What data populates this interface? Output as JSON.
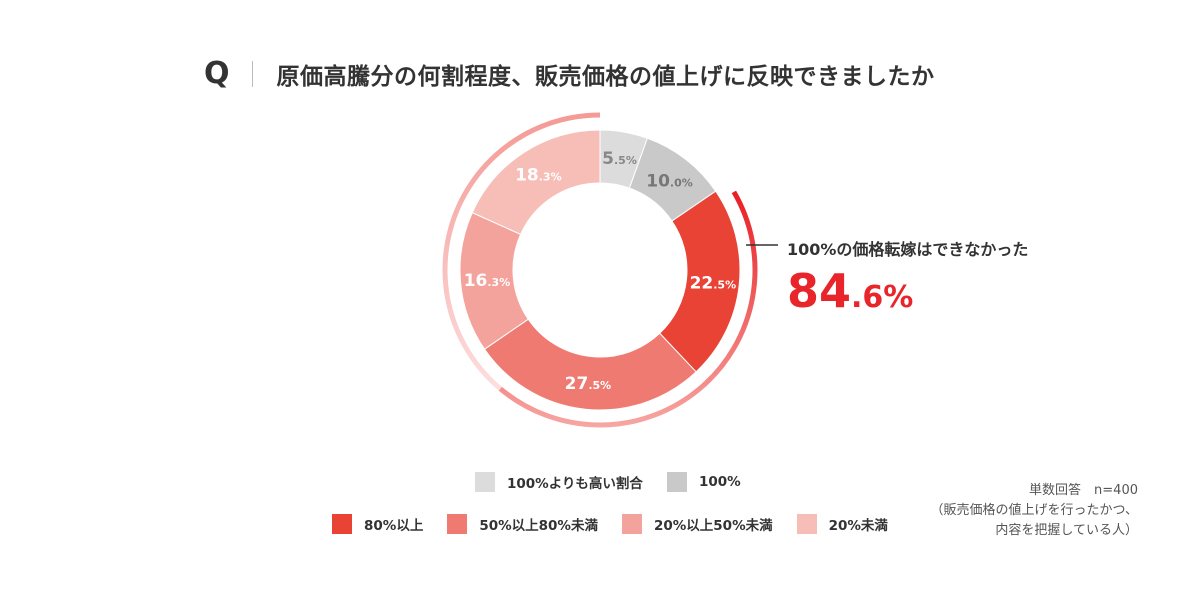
{
  "header": {
    "q_mark": "Q",
    "question": "原価高騰分の何割程度、販売価格の値上げに反映できましたか"
  },
  "chart_data": {
    "type": "pie",
    "style": "donut",
    "start_angle": "top, clockwise",
    "slices": [
      {
        "label": "100%よりも高い割合",
        "value": 5.5,
        "int": "5",
        "dec": ".5%",
        "color": "#dcdcdc",
        "text_color": "#888888"
      },
      {
        "label": "100%",
        "value": 10.0,
        "int": "10",
        "dec": ".0%",
        "color": "#c9c9c9",
        "text_color": "#777777"
      },
      {
        "label": "80%以上",
        "value": 22.5,
        "int": "22",
        "dec": ".5%",
        "color": "#e84335",
        "text_color": "#ffffff"
      },
      {
        "label": "50%以上80%未満",
        "value": 27.5,
        "int": "27",
        "dec": ".5%",
        "color": "#ef7a72",
        "text_color": "#ffffff"
      },
      {
        "label": "20%以上50%未満",
        "value": 16.3,
        "int": "16",
        "dec": ".3%",
        "color": "#f3a39c",
        "text_color": "#ffffff"
      },
      {
        "label": "20%未満",
        "value": 18.3,
        "int": "18",
        "dec": ".3%",
        "color": "#f7beb8",
        "text_color": "#ffffff"
      }
    ],
    "legend": {
      "row1": [
        "100%よりも高い割合",
        "100%"
      ],
      "row2": [
        "80%以上",
        "50%以上80%未満",
        "20%以上50%未満",
        "20%未満"
      ]
    },
    "callout": {
      "label": "100%の価格転嫁はできなかった",
      "value_int": "84",
      "value_dec": ".6%",
      "value": 84.6,
      "color": "#e8252b"
    }
  },
  "note": {
    "line1": "単数回答　n=400",
    "line2": "（販売価格の値上げを行ったかつ、",
    "line3": "内容を把握している人）"
  }
}
